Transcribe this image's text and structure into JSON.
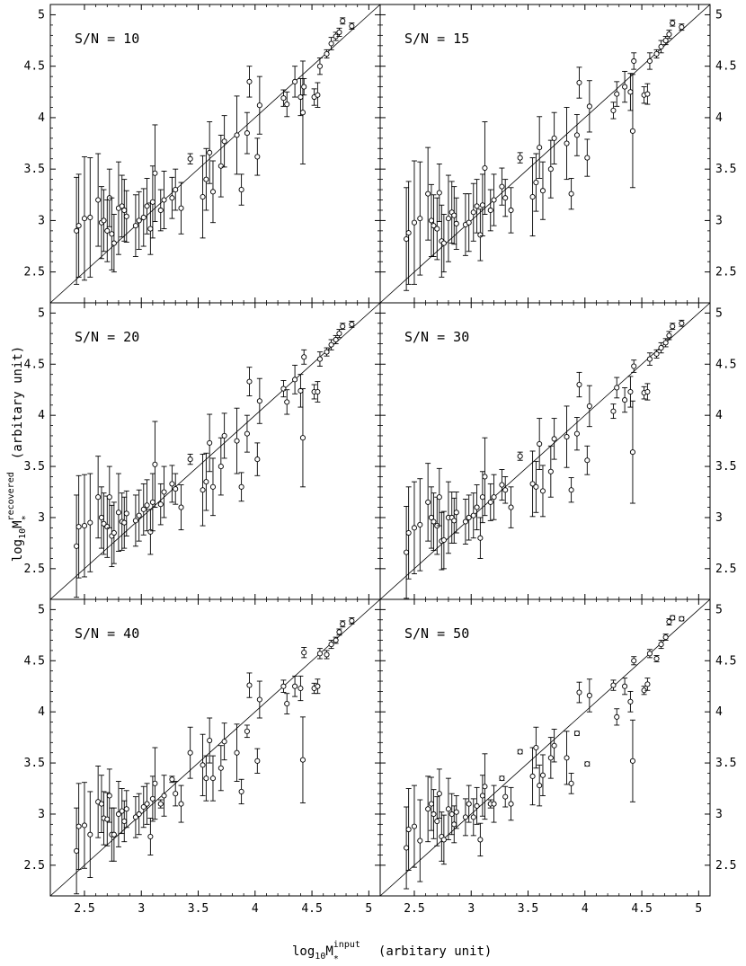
{
  "chart_data": {
    "type": "scatter",
    "xlabel": {
      "base": "log",
      "sub": "10",
      "main": "M",
      "sup": "input",
      "sub2": "*",
      "unit": "(arbitary unit)"
    },
    "ylabel": {
      "base": "log",
      "sub": "10",
      "main": "M",
      "sup": "recovered",
      "sub2": "*",
      "unit": "(arbitary unit)"
    },
    "xlim": [
      2.2,
      5.1
    ],
    "ylim": [
      2.2,
      5.1
    ],
    "xticks": [
      "2.5",
      "3",
      "3.5",
      "4",
      "4.5",
      "5"
    ],
    "yticks": [
      "2.5",
      "3",
      "3.5",
      "4",
      "4.5",
      "5"
    ],
    "reference_line": "y = x",
    "input_x": [
      2.43,
      2.45,
      2.5,
      2.55,
      2.62,
      2.65,
      2.67,
      2.7,
      2.72,
      2.74,
      2.76,
      2.8,
      2.83,
      2.85,
      2.87,
      2.95,
      2.98,
      3.02,
      3.05,
      3.08,
      3.1,
      3.12,
      3.17,
      3.2,
      3.27,
      3.3,
      3.35,
      3.43,
      3.54,
      3.57,
      3.6,
      3.63,
      3.7,
      3.73,
      3.84,
      3.88,
      3.93,
      3.95,
      4.02,
      4.04,
      4.25,
      4.28,
      4.35,
      4.4,
      4.42,
      4.43,
      4.52,
      4.55,
      4.57,
      4.63,
      4.67,
      4.71,
      4.74,
      4.77,
      4.85
    ],
    "panels": [
      {
        "label": "S/N = 10",
        "y": [
          2.9,
          2.95,
          3.02,
          3.03,
          3.2,
          2.98,
          3.0,
          2.9,
          3.22,
          2.87,
          2.78,
          3.12,
          3.14,
          3.1,
          3.04,
          2.95,
          3.0,
          3.03,
          3.14,
          2.92,
          3.18,
          3.46,
          3.1,
          3.2,
          3.22,
          3.3,
          3.12,
          3.6,
          3.23,
          3.4,
          3.66,
          3.28,
          3.53,
          3.77,
          3.83,
          3.3,
          3.85,
          4.35,
          3.62,
          4.12,
          4.19,
          4.13,
          4.35,
          4.2,
          4.05,
          4.3,
          4.2,
          4.22,
          4.5,
          4.62,
          4.72,
          4.79,
          4.83,
          4.94,
          4.89
        ],
        "err": [
          0.52,
          0.5,
          0.6,
          0.58,
          0.45,
          0.35,
          0.3,
          0.3,
          0.28,
          0.35,
          0.28,
          0.45,
          0.3,
          0.3,
          0.25,
          0.3,
          0.28,
          0.28,
          0.27,
          0.25,
          0.35,
          0.47,
          0.2,
          0.28,
          0.2,
          0.2,
          0.25,
          0.05,
          0.4,
          0.3,
          0.3,
          0.3,
          0.3,
          0.25,
          0.38,
          0.15,
          0.2,
          0.15,
          0.18,
          0.28,
          0.08,
          0.12,
          0.15,
          0.18,
          0.5,
          0.08,
          0.08,
          0.12,
          0.08,
          0.04,
          0.06,
          0.04,
          0.04,
          0.03,
          0.03
        ]
      },
      {
        "label": "S/N = 15",
        "y": [
          2.82,
          2.88,
          2.98,
          3.02,
          3.26,
          3.0,
          2.95,
          2.92,
          3.27,
          2.8,
          2.78,
          3.02,
          3.08,
          3.05,
          2.97,
          2.96,
          2.98,
          3.08,
          3.14,
          2.86,
          3.15,
          3.51,
          3.1,
          3.2,
          3.33,
          3.22,
          3.1,
          3.61,
          3.23,
          3.37,
          3.71,
          3.29,
          3.5,
          3.8,
          3.75,
          3.26,
          3.83,
          4.34,
          3.61,
          4.11,
          4.07,
          4.23,
          4.3,
          4.25,
          3.87,
          4.55,
          4.22,
          4.23,
          4.55,
          4.62,
          4.69,
          4.75,
          4.81,
          4.92,
          4.88
        ],
        "err": [
          0.5,
          0.5,
          0.6,
          0.55,
          0.45,
          0.35,
          0.3,
          0.3,
          0.28,
          0.35,
          0.28,
          0.42,
          0.3,
          0.28,
          0.25,
          0.3,
          0.28,
          0.28,
          0.26,
          0.25,
          0.3,
          0.45,
          0.2,
          0.25,
          0.18,
          0.18,
          0.22,
          0.05,
          0.38,
          0.28,
          0.3,
          0.28,
          0.28,
          0.25,
          0.35,
          0.15,
          0.2,
          0.15,
          0.18,
          0.25,
          0.08,
          0.12,
          0.15,
          0.18,
          0.55,
          0.08,
          0.08,
          0.1,
          0.08,
          0.04,
          0.06,
          0.04,
          0.04,
          0.03,
          0.03
        ]
      },
      {
        "label": "S/N = 20",
        "y": [
          2.72,
          2.91,
          2.92,
          2.95,
          3.2,
          3.0,
          2.94,
          2.91,
          3.2,
          2.82,
          2.85,
          3.05,
          2.96,
          2.95,
          3.04,
          2.97,
          3.02,
          3.08,
          3.12,
          2.86,
          3.15,
          3.52,
          3.13,
          3.25,
          3.33,
          3.28,
          3.1,
          3.57,
          3.27,
          3.35,
          3.73,
          3.3,
          3.5,
          3.8,
          3.75,
          3.3,
          3.82,
          4.33,
          3.57,
          4.14,
          4.26,
          4.13,
          4.35,
          4.24,
          3.78,
          4.57,
          4.23,
          4.23,
          4.55,
          4.62,
          4.69,
          4.74,
          4.8,
          4.87,
          4.89
        ],
        "err": [
          0.5,
          0.5,
          0.5,
          0.48,
          0.4,
          0.3,
          0.3,
          0.3,
          0.3,
          0.3,
          0.3,
          0.38,
          0.28,
          0.25,
          0.22,
          0.25,
          0.25,
          0.25,
          0.25,
          0.22,
          0.28,
          0.42,
          0.2,
          0.25,
          0.18,
          0.15,
          0.22,
          0.05,
          0.35,
          0.28,
          0.28,
          0.28,
          0.28,
          0.22,
          0.32,
          0.14,
          0.18,
          0.14,
          0.16,
          0.22,
          0.08,
          0.12,
          0.14,
          0.16,
          0.48,
          0.07,
          0.07,
          0.1,
          0.07,
          0.04,
          0.05,
          0.04,
          0.04,
          0.03,
          0.03
        ]
      },
      {
        "label": "S/N = 30",
        "y": [
          2.66,
          2.85,
          2.9,
          2.93,
          3.15,
          3.0,
          2.96,
          2.92,
          3.2,
          2.77,
          2.78,
          3.0,
          3.0,
          2.97,
          3.05,
          2.96,
          3.0,
          3.02,
          3.1,
          2.8,
          3.2,
          3.4,
          3.15,
          3.2,
          3.32,
          3.27,
          3.1,
          3.6,
          3.33,
          3.3,
          3.72,
          3.26,
          3.45,
          3.77,
          3.79,
          3.27,
          3.82,
          4.3,
          3.56,
          4.09,
          4.04,
          4.27,
          4.15,
          4.23,
          3.64,
          4.48,
          4.22,
          4.23,
          4.55,
          4.6,
          4.66,
          4.71,
          4.78,
          4.87,
          4.9
        ],
        "err": [
          0.45,
          0.45,
          0.45,
          0.45,
          0.38,
          0.3,
          0.28,
          0.28,
          0.28,
          0.28,
          0.28,
          0.35,
          0.25,
          0.22,
          0.2,
          0.22,
          0.22,
          0.22,
          0.22,
          0.2,
          0.25,
          0.38,
          0.18,
          0.22,
          0.15,
          0.13,
          0.2,
          0.04,
          0.32,
          0.25,
          0.25,
          0.25,
          0.25,
          0.2,
          0.3,
          0.12,
          0.16,
          0.12,
          0.14,
          0.2,
          0.07,
          0.1,
          0.12,
          0.15,
          0.5,
          0.06,
          0.06,
          0.08,
          0.06,
          0.04,
          0.05,
          0.04,
          0.04,
          0.03,
          0.03
        ]
      },
      {
        "label": "S/N = 40",
        "y": [
          2.64,
          2.88,
          2.89,
          2.8,
          3.12,
          3.1,
          2.96,
          2.95,
          3.18,
          2.8,
          2.8,
          3.0,
          3.03,
          2.93,
          3.05,
          2.97,
          3.0,
          3.07,
          3.1,
          2.78,
          3.15,
          3.3,
          3.1,
          3.18,
          3.34,
          3.2,
          3.1,
          3.6,
          3.48,
          3.35,
          3.72,
          3.35,
          3.45,
          3.71,
          3.6,
          3.22,
          3.81,
          4.26,
          3.52,
          4.12,
          4.25,
          4.08,
          4.25,
          4.23,
          3.53,
          4.58,
          4.23,
          4.25,
          4.57,
          4.56,
          4.66,
          4.7,
          4.78,
          4.86,
          4.89
        ],
        "err": [
          0.42,
          0.42,
          0.42,
          0.42,
          0.35,
          0.28,
          0.26,
          0.26,
          0.26,
          0.26,
          0.26,
          0.32,
          0.22,
          0.2,
          0.18,
          0.2,
          0.2,
          0.2,
          0.2,
          0.18,
          0.22,
          0.35,
          0.04,
          0.2,
          0.03,
          0.12,
          0.18,
          0.25,
          0.3,
          0.22,
          0.22,
          0.22,
          0.22,
          0.18,
          0.28,
          0.12,
          0.06,
          0.12,
          0.12,
          0.18,
          0.06,
          0.1,
          0.1,
          0.12,
          0.42,
          0.05,
          0.05,
          0.07,
          0.05,
          0.04,
          0.04,
          0.03,
          0.03,
          0.03,
          0.03
        ]
      },
      {
        "label": "S/N = 50",
        "y": [
          2.67,
          2.85,
          2.88,
          2.74,
          3.05,
          3.1,
          3.0,
          2.93,
          3.2,
          2.78,
          2.75,
          3.05,
          3.0,
          2.9,
          3.02,
          2.97,
          3.1,
          2.97,
          3.08,
          2.75,
          3.18,
          3.27,
          3.1,
          3.1,
          3.35,
          3.17,
          3.1,
          3.61,
          3.37,
          3.65,
          3.28,
          3.38,
          3.55,
          3.67,
          3.55,
          3.3,
          3.79,
          4.19,
          3.49,
          4.16,
          4.26,
          3.95,
          4.25,
          4.1,
          3.52,
          4.5,
          4.21,
          4.27,
          4.57,
          4.52,
          4.66,
          4.73,
          4.88,
          4.92,
          4.91
        ],
        "err": [
          0.4,
          0.4,
          0.4,
          0.4,
          0.32,
          0.26,
          0.24,
          0.24,
          0.24,
          0.24,
          0.24,
          0.3,
          0.2,
          0.18,
          0.16,
          0.18,
          0.18,
          0.18,
          0.18,
          0.16,
          0.2,
          0.32,
          0.04,
          0.18,
          0.02,
          0.1,
          0.16,
          0.02,
          0.28,
          0.2,
          0.2,
          0.2,
          0.2,
          0.16,
          0.26,
          0.1,
          0.02,
          0.1,
          0.02,
          0.16,
          0.05,
          0.08,
          0.08,
          0.1,
          0.4,
          0.04,
          0.04,
          0.06,
          0.04,
          0.03,
          0.04,
          0.03,
          0.03,
          0.02,
          0.02
        ]
      }
    ]
  }
}
